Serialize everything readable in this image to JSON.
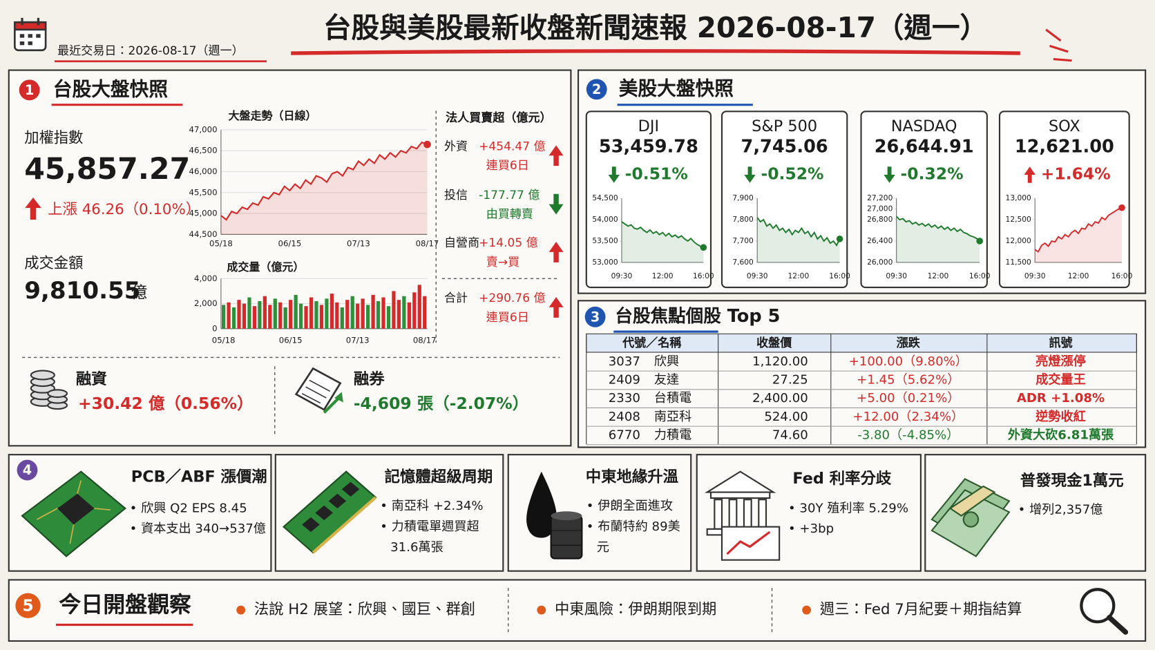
{
  "header": {
    "title": "台股與美股最新收盤新聞速報 2026-08-17（週一）",
    "subtitle": "最近交易日：2026-08-17（週一）"
  },
  "tw": {
    "number": "1",
    "heading": "台股大盤快照",
    "index_label": "加權指數",
    "index_value": "45,857.27",
    "index_change": "上漲 46.26（0.10%）",
    "turnover_label": "成交金額",
    "turnover_value": "9,810.55",
    "turnover_unit": "億",
    "institutional": {
      "title": "法人買賣超（億元）",
      "rows": [
        {
          "name": "外資",
          "amount": "+454.47 億",
          "note": "連買6日",
          "direction": "up"
        },
        {
          "name": "投信",
          "amount": "-177.77 億",
          "note": "由買轉賣",
          "direction": "down"
        },
        {
          "name": "自營商",
          "amount": "+14.05 億",
          "note": "賣→買",
          "direction": "up"
        },
        {
          "name": "合計",
          "amount": "+290.76 億",
          "note": "連買6日",
          "direction": "up"
        }
      ]
    },
    "margin": {
      "label": "融資",
      "value": "+30.42 億（0.56%）"
    },
    "short": {
      "label": "融券",
      "value": "-4,609 張（-2.07%）"
    }
  },
  "us": {
    "number": "2",
    "heading": "美股大盤快照",
    "cards": [
      {
        "name": "DJI",
        "close": "53,459.78",
        "change": "-0.51%",
        "direction": "down"
      },
      {
        "name": "S&P 500",
        "close": "7,745.06",
        "change": "-0.52%",
        "direction": "down"
      },
      {
        "name": "NASDAQ",
        "close": "26,644.91",
        "change": "-0.32%",
        "direction": "down"
      },
      {
        "name": "SOX",
        "close": "12,621.00",
        "change": "+1.64%",
        "direction": "up"
      }
    ]
  },
  "top5": {
    "number": "3",
    "heading": "台股焦點個股 Top 5",
    "columns": [
      "代號／名稱",
      "收盤價",
      "漲跌",
      "訊號"
    ],
    "rows": [
      [
        "3037",
        "欣興",
        "1,120.00",
        "+100.00（9.80%）",
        "亮燈漲停"
      ],
      [
        "2409",
        "友達",
        "27.25",
        "+1.45（5.62%）",
        "成交量王"
      ],
      [
        "2330",
        "台積電",
        "2,400.00",
        "+5.00（0.21%）",
        "ADR +1.08%"
      ],
      [
        "2408",
        "南亞科",
        "524.00",
        "+12.00（2.34%）",
        "逆勢收紅"
      ],
      [
        "6770",
        "力積電",
        "74.60",
        "-3.80（-4.85%）",
        "外資大砍6.81萬張"
      ]
    ]
  },
  "themes": {
    "number": "4",
    "cards": [
      {
        "title": "PCB／ABF 漲價潮",
        "bullets": [
          "欣興 Q2 EPS 8.45",
          "資本支出 340→537億"
        ]
      },
      {
        "title": "記憶體超級周期",
        "bullets": [
          "南亞科 +2.34%",
          "力積電單週買超 31.6萬張"
        ]
      },
      {
        "title": "中東地緣升溫",
        "bullets": [
          "伊朗全面進攻",
          "布蘭特約 89美元"
        ]
      },
      {
        "title": "Fed 利率分歧",
        "bullets": [
          "30Y 殖利率 5.29%",
          "+3bp"
        ]
      },
      {
        "title": "普發現金1萬元",
        "bullets": [
          "增列2,357億"
        ]
      }
    ]
  },
  "watch": {
    "number": "5",
    "title": "今日開盤觀察",
    "items": [
      "法說 H2 展望：欣興、國巨、群創",
      "中東風險：伊朗期限到期",
      "週三：Fed 7月紀要＋期指結算"
    ]
  },
  "chart_data": [
    {
      "type": "line",
      "title": "大盤走勢（日線）",
      "color": "#d42a2a",
      "grid": true,
      "categories": [
        "05/18",
        null,
        null,
        null,
        null,
        null,
        null,
        null,
        null,
        null,
        null,
        null,
        null,
        "06/15",
        null,
        null,
        null,
        null,
        null,
        null,
        null,
        null,
        null,
        null,
        null,
        null,
        "07/13",
        null,
        null,
        null,
        null,
        null,
        null,
        null,
        null,
        null,
        null,
        null,
        null,
        "08/17"
      ],
      "values": [
        44950,
        44850,
        45050,
        45000,
        45150,
        45100,
        45250,
        45200,
        45400,
        45350,
        45500,
        45450,
        45650,
        45550,
        45700,
        45600,
        45800,
        45700,
        45900,
        45850,
        45750,
        45950,
        46000,
        45900,
        46100,
        46050,
        46250,
        46150,
        46300,
        46200,
        46400,
        46300,
        46450,
        46350,
        46500,
        46450,
        46600,
        46550,
        46700,
        46650
      ],
      "ylim": [
        44500,
        47000
      ],
      "yticks": [
        {
          "value": 44500,
          "label": "44,500"
        },
        {
          "value": 45000,
          "label": "45,000"
        },
        {
          "value": 45500,
          "label": "45,500"
        },
        {
          "value": 46000,
          "label": "46,000"
        },
        {
          "value": 46500,
          "label": "46,500"
        },
        {
          "value": 47000,
          "label": "47,000"
        }
      ]
    },
    {
      "type": "bar",
      "title": "成交量（億元）",
      "grid": true,
      "categories": [
        "05/18",
        null,
        null,
        null,
        null,
        null,
        null,
        null,
        null,
        null,
        null,
        null,
        null,
        "06/15",
        null,
        null,
        null,
        null,
        null,
        null,
        null,
        null,
        null,
        null,
        null,
        null,
        "07/13",
        null,
        null,
        null,
        null,
        null,
        null,
        null,
        null,
        null,
        null,
        null,
        null,
        "08/17"
      ],
      "values": [
        1900,
        2100,
        1700,
        2300,
        2000,
        2500,
        1800,
        2200,
        2600,
        1900,
        2400,
        2100,
        1700,
        2300,
        2700,
        2000,
        1800,
        2500,
        2200,
        1900,
        2400,
        2800,
        2100,
        1700,
        2300,
        2600,
        2000,
        2400,
        1900,
        2700,
        2200,
        2500,
        1800,
        3000,
        2300,
        2600,
        2100,
        2900,
        3500,
        2600
      ],
      "colors": [
        "#2f8f3a",
        "#d42a2a",
        "#2f8f3a",
        "#d42a2a",
        "#d42a2a",
        "#2f8f3a",
        "#d42a2a",
        "#2f8f3a",
        "#d42a2a",
        "#d42a2a",
        "#2f8f3a",
        "#d42a2a",
        "#2f8f3a",
        "#d42a2a",
        "#2f8f3a",
        "#2f8f3a",
        "#d42a2a",
        "#d42a2a",
        "#2f8f3a",
        "#d42a2a",
        "#2f8f3a",
        "#d42a2a",
        "#d42a2a",
        "#2f8f3a",
        "#d42a2a",
        "#2f8f3a",
        "#d42a2a",
        "#d42a2a",
        "#2f8f3a",
        "#d42a2a",
        "#2f8f3a",
        "#d42a2a",
        "#2f8f3a",
        "#d42a2a",
        "#d42a2a",
        "#2f8f3a",
        "#d42a2a",
        "#d42a2a",
        "#d42a2a",
        "#d42a2a"
      ],
      "ylim": [
        0,
        4000
      ],
      "yticks": [
        0,
        {
          "value": 2000,
          "label": "2,000"
        },
        {
          "value": 4000,
          "label": "4,000"
        }
      ]
    },
    {
      "type": "line",
      "color": "#1f7a2e",
      "categories": [
        "09:30",
        null,
        null,
        null,
        null,
        null,
        null,
        null,
        null,
        null,
        null,
        null,
        null,
        "12:00",
        null,
        null,
        null,
        null,
        null,
        null,
        null,
        null,
        null,
        null,
        null,
        null,
        "16:00"
      ],
      "values": [
        53950,
        53900,
        53850,
        53880,
        53800,
        53780,
        53820,
        53750,
        53700,
        53760,
        53680,
        53720,
        53650,
        53700,
        53620,
        53680,
        53600,
        53640,
        53580,
        53620,
        53550,
        53500,
        53560,
        53480,
        53420,
        53380,
        53350
      ],
      "ylim": [
        53000,
        54500
      ],
      "yticks": [
        {
          "value": 53000,
          "label": "53,000"
        },
        {
          "value": 53500,
          "label": "53,500"
        },
        {
          "value": 54000,
          "label": "54,000"
        },
        {
          "value": 54500,
          "label": "54,500"
        }
      ]
    },
    {
      "type": "line",
      "color": "#1f7a2e",
      "categories": [
        "09:30",
        null,
        null,
        null,
        null,
        null,
        null,
        null,
        null,
        null,
        null,
        null,
        null,
        "12:00",
        null,
        null,
        null,
        null,
        null,
        null,
        null,
        null,
        null,
        null,
        null,
        null,
        "16:00"
      ],
      "values": [
        7810,
        7790,
        7800,
        7770,
        7780,
        7760,
        7775,
        7750,
        7760,
        7740,
        7755,
        7730,
        7750,
        7740,
        7760,
        7735,
        7745,
        7720,
        7740,
        7710,
        7725,
        7700,
        7715,
        7690,
        7700,
        7680,
        7710
      ],
      "ylim": [
        7600,
        7900
      ],
      "yticks": [
        {
          "value": 7600,
          "label": "7,600"
        },
        {
          "value": 7700,
          "label": "7,700"
        },
        {
          "value": 7800,
          "label": "7,800"
        },
        {
          "value": 7900,
          "label": "7,900"
        }
      ]
    },
    {
      "type": "line",
      "color": "#1f7a2e",
      "categories": [
        "09:30",
        null,
        null,
        null,
        null,
        null,
        null,
        null,
        null,
        null,
        null,
        null,
        null,
        "12:00",
        null,
        null,
        null,
        null,
        null,
        null,
        null,
        null,
        null,
        null,
        null,
        null,
        "16:00"
      ],
      "values": [
        26860,
        26800,
        26820,
        26760,
        26780,
        26720,
        26750,
        26700,
        26730,
        26680,
        26720,
        26660,
        26700,
        26640,
        26680,
        26620,
        26660,
        26600,
        26640,
        26580,
        26620,
        26560,
        26540,
        26500,
        26480,
        26450,
        26400
      ],
      "ylim": [
        26000,
        27200
      ],
      "yticks": [
        {
          "value": 26000,
          "label": "26,000"
        },
        {
          "value": 26400,
          "label": "26,400"
        },
        {
          "value": 26800,
          "label": "26,800"
        },
        {
          "value": 27000,
          "label": "27,000"
        },
        {
          "value": 27200,
          "label": "27,200"
        }
      ]
    },
    {
      "type": "line",
      "color": "#d42a2a",
      "categories": [
        "09:30",
        null,
        null,
        null,
        null,
        null,
        null,
        null,
        null,
        null,
        null,
        null,
        null,
        "12:00",
        null,
        null,
        null,
        null,
        null,
        null,
        null,
        null,
        null,
        null,
        null,
        null,
        "16:00"
      ],
      "values": [
        11800,
        11750,
        11900,
        11950,
        11880,
        12000,
        11980,
        12100,
        12050,
        12150,
        12100,
        12200,
        12250,
        12180,
        12300,
        12280,
        12400,
        12350,
        12450,
        12420,
        12550,
        12500,
        12600,
        12650,
        12700,
        12750,
        12780
      ],
      "ylim": [
        11500,
        13000
      ],
      "yticks": [
        {
          "value": 11500,
          "label": "11,500"
        },
        {
          "value": 12000,
          "label": "12,000"
        },
        {
          "value": 12500,
          "label": "12,500"
        },
        {
          "value": 13000,
          "label": "13,000"
        }
      ]
    }
  ]
}
